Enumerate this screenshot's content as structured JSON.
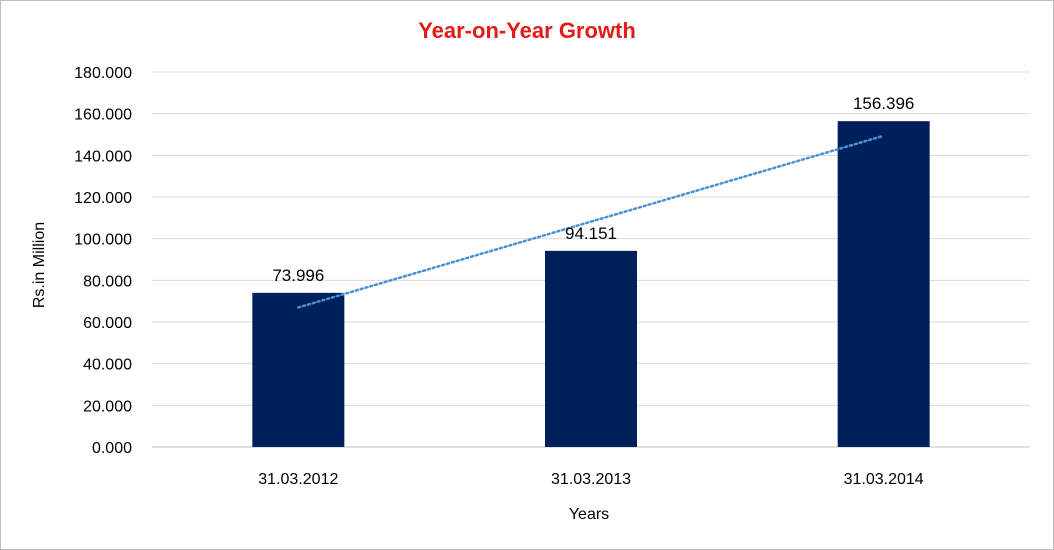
{
  "chart_data": {
    "type": "bar",
    "title": "Year-on-Year Growth",
    "xlabel": "Years",
    "ylabel": "Rs.in Million",
    "categories": [
      "31.03.2012",
      "31.03.2013",
      "31.03.2014"
    ],
    "values": [
      73.996,
      94.151,
      156.396
    ],
    "data_labels": [
      "73.996",
      "94.151",
      "156.396"
    ],
    "ylim": [
      0,
      180
    ],
    "yticks": [
      0,
      20,
      40,
      60,
      80,
      100,
      120,
      140,
      160,
      180
    ],
    "ytick_labels": [
      "0.000",
      "20.000",
      "40.000",
      "60.000",
      "80.000",
      "100.000",
      "120.000",
      "140.000",
      "160.000",
      "180.000"
    ],
    "trendline": {
      "type": "linear",
      "style": "dotted"
    },
    "grid": true,
    "legend": "none",
    "colors": {
      "bar": "#00205b",
      "trendline": "#4a90d9",
      "title": "#e31b1b",
      "grid": "#d9d9d9"
    }
  }
}
